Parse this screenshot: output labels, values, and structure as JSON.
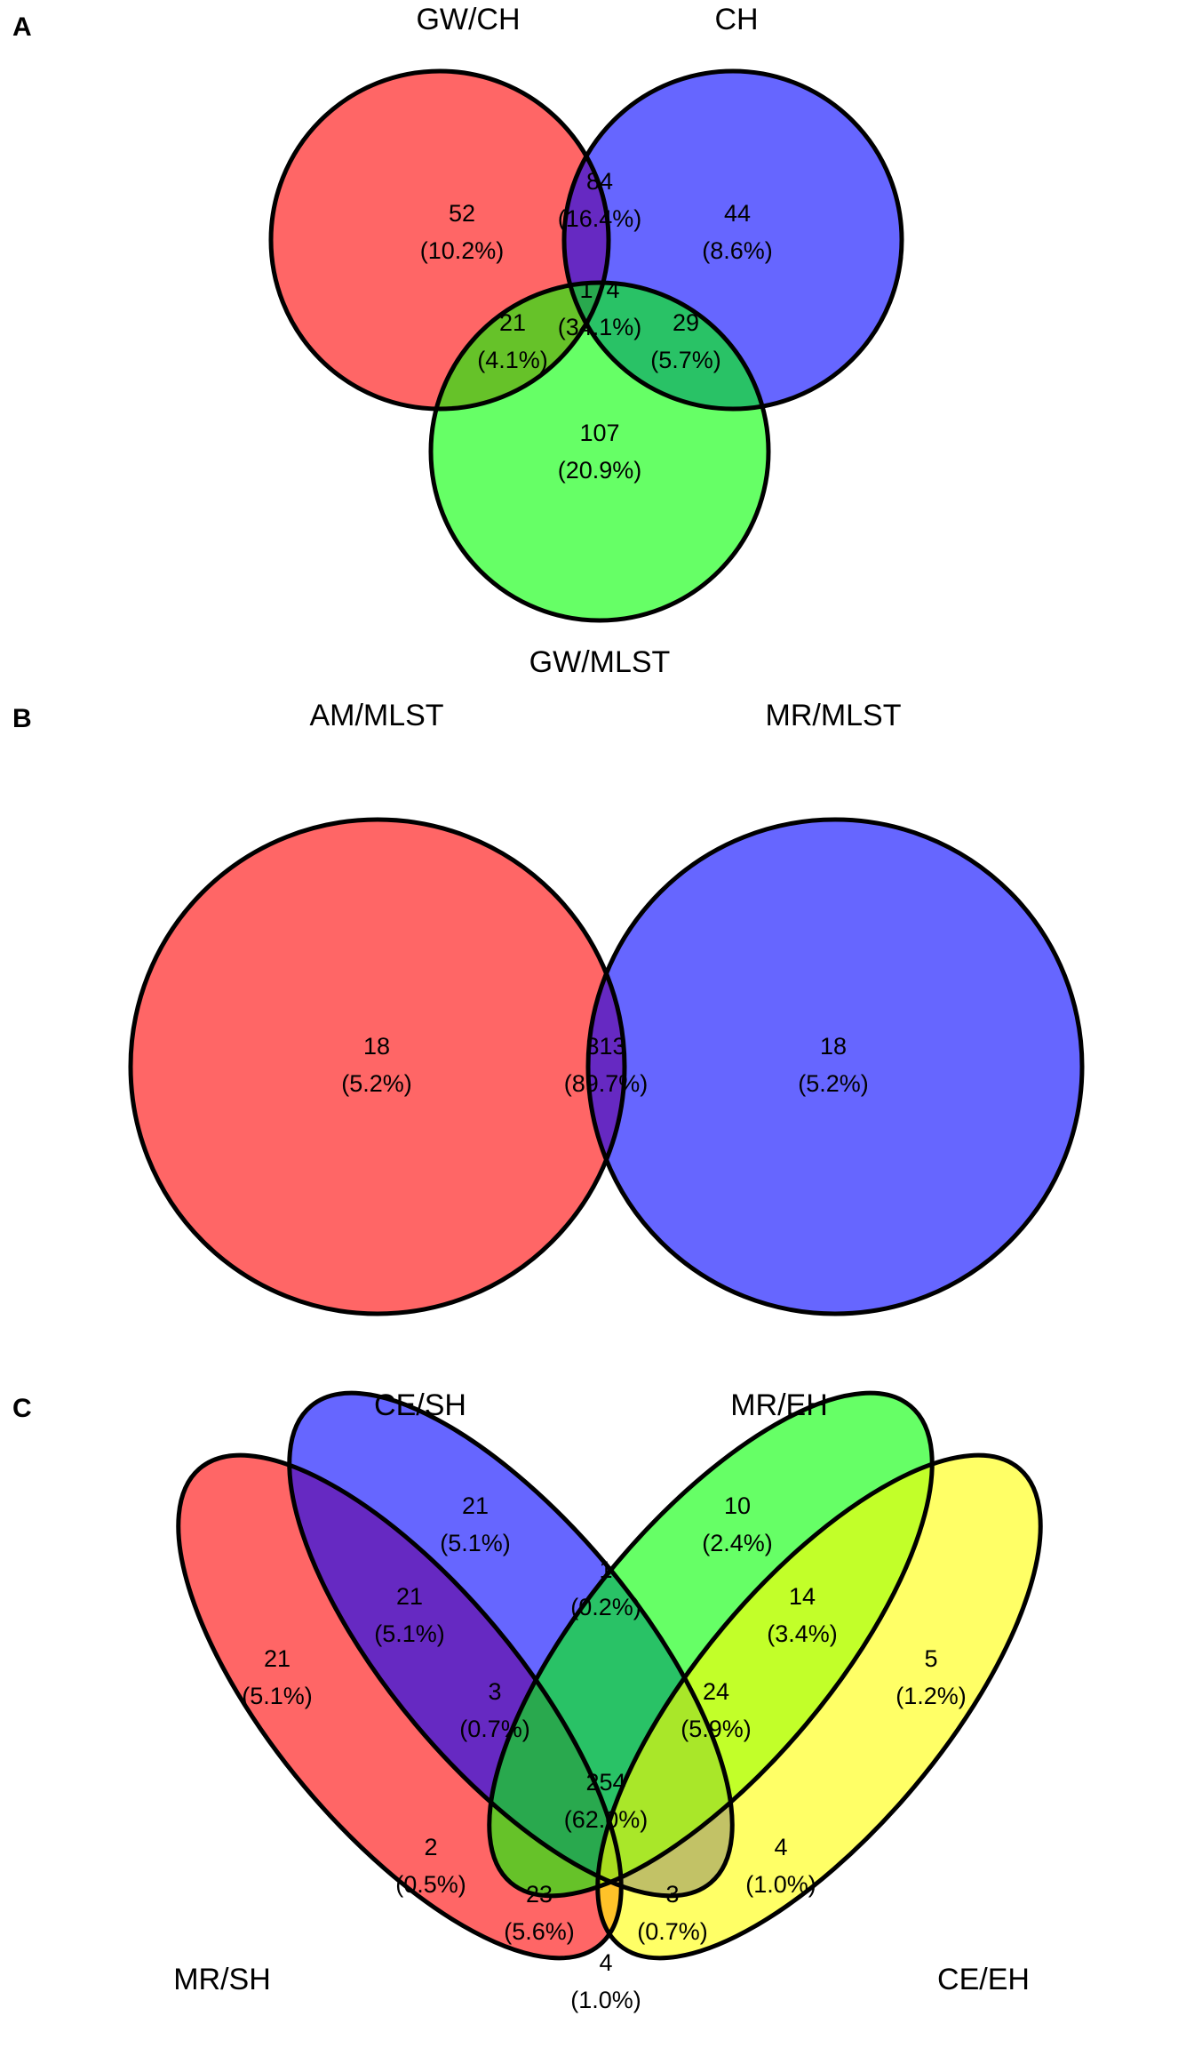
{
  "panel_a": {
    "letter": "A",
    "sets": {
      "red": "GW/CH",
      "blue": "CH",
      "green": "GW/MLST"
    },
    "regions": {
      "red_only": {
        "count": "52",
        "percent": "(10.2%)"
      },
      "blue_only": {
        "count": "44",
        "percent": "(8.6%)"
      },
      "green_only": {
        "count": "107",
        "percent": "(20.9%)"
      },
      "red_blue": {
        "count": "84",
        "percent": "(16.4%)"
      },
      "red_green": {
        "count": "21",
        "percent": "(4.1%)"
      },
      "blue_green": {
        "count": "29",
        "percent": "(5.7%)"
      },
      "all": {
        "count": "174",
        "percent": "(34.1%)"
      }
    }
  },
  "panel_b": {
    "letter": "B",
    "sets": {
      "red": "AM/MLST",
      "blue": "MR/MLST"
    },
    "regions": {
      "red_only": {
        "count": "18",
        "percent": "(5.2%)"
      },
      "both": {
        "count": "313",
        "percent": "(89.7%)"
      },
      "blue_only": {
        "count": "18",
        "percent": "(5.2%)"
      }
    }
  },
  "panel_c": {
    "letter": "C",
    "sets": {
      "red": "MR/SH",
      "blue": "CE/SH",
      "green": "MR/EH",
      "yellow": "CE/EH"
    },
    "regions": {
      "blue_only": {
        "count": "21",
        "percent": "(5.1%)"
      },
      "green_only": {
        "count": "10",
        "percent": "(2.4%)"
      },
      "red_only": {
        "count": "21",
        "percent": "(5.1%)"
      },
      "yellow_only": {
        "count": "5",
        "percent": "(1.2%)"
      },
      "red_blue": {
        "count": "21",
        "percent": "(5.1%)"
      },
      "blue_green": {
        "count": "1",
        "percent": "(0.2%)"
      },
      "green_yellow": {
        "count": "14",
        "percent": "(3.4%)"
      },
      "red_blue_green": {
        "count": "3",
        "percent": "(0.7%)"
      },
      "blue_green_yellow": {
        "count": "24",
        "percent": "(5.9%)"
      },
      "all": {
        "count": "254",
        "percent": "(62.0%)"
      },
      "red_green": {
        "count": "2",
        "percent": "(0.5%)"
      },
      "blue_yellow": {
        "count": "4",
        "percent": "(1.0%)"
      },
      "red_green_yellow": {
        "count": "23",
        "percent": "(5.6%)"
      },
      "red_blue_yellow": {
        "count": "3",
        "percent": "(0.7%)"
      },
      "red_yellow": {
        "count": "4",
        "percent": "(1.0%)"
      }
    }
  },
  "colors": {
    "red": "#ff0000",
    "blue": "#0000ff",
    "green": "#00ff00",
    "yellow": "#ffff00",
    "fill_opacity": 0.6
  }
}
